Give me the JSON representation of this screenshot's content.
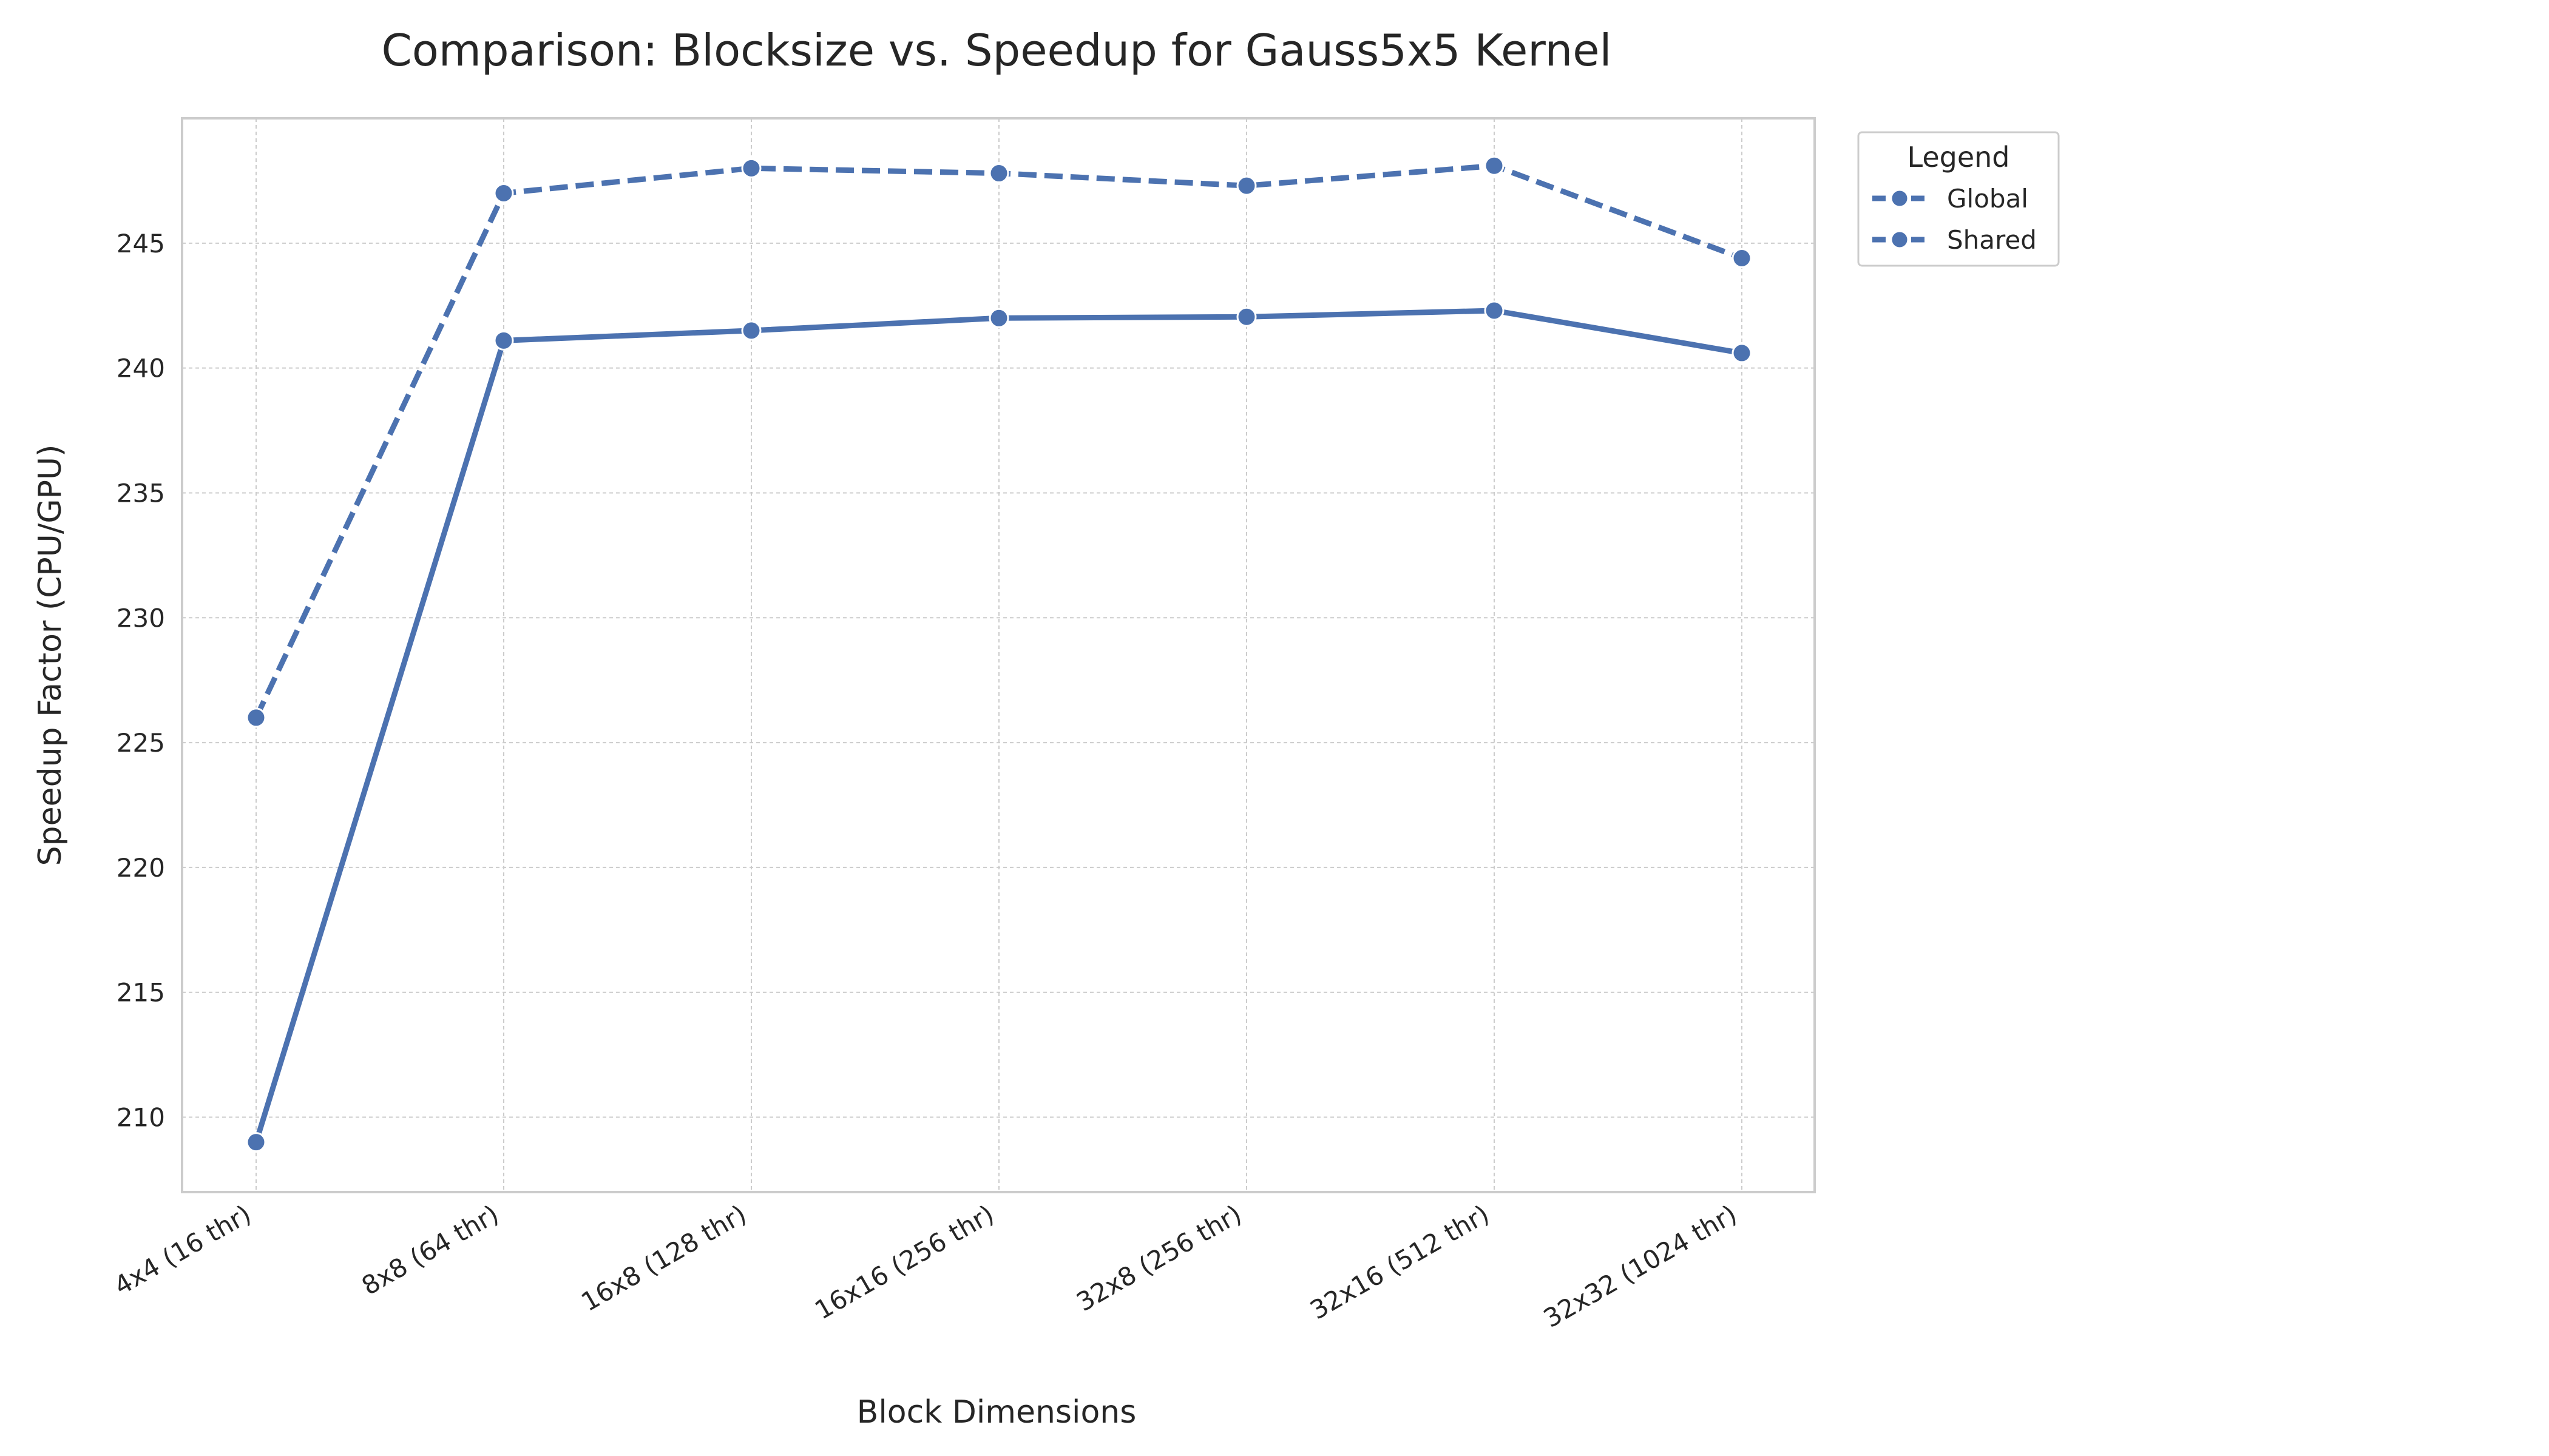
{
  "chart_data": {
    "type": "line",
    "title": "Comparison: Blocksize vs. Speedup for Gauss5x5 Kernel",
    "xlabel": "Block Dimensions",
    "ylabel": "Speedup Factor (CPU/GPU)",
    "categories": [
      "4x4 (16 thr)",
      "8x8 (64 thr)",
      "16x8 (128 thr)",
      "16x16 (256 thr)",
      "32x8 (256 thr)",
      "32x16 (512 thr)",
      "32x32 (1024 thr)"
    ],
    "ylim": [
      207,
      250
    ],
    "yticks": [
      210,
      215,
      220,
      225,
      230,
      235,
      240,
      245
    ],
    "grid": true,
    "legend": {
      "title": "Legend",
      "placement": "upper-right-outside"
    },
    "series": [
      {
        "name": "Global",
        "style": "solid",
        "color": "#4c72b0",
        "values": [
          209.0,
          241.1,
          241.5,
          242.0,
          242.05,
          242.3,
          240.6
        ]
      },
      {
        "name": "Shared",
        "style": "dashed",
        "color": "#4c72b0",
        "values": [
          226.0,
          247.0,
          248.0,
          247.8,
          247.3,
          248.1,
          244.4
        ]
      }
    ]
  }
}
